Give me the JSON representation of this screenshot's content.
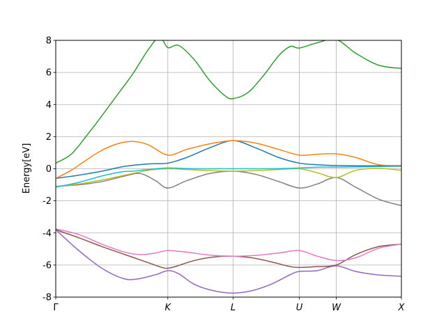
{
  "chart_data": {
    "type": "line",
    "title": "",
    "xlabel": "",
    "ylabel": "Energy[eV]",
    "ylim": [
      -8,
      8
    ],
    "yticks": [
      -8,
      -6,
      -4,
      -2,
      0,
      2,
      4,
      6,
      8
    ],
    "xlim": [
      0,
      4.494
    ],
    "xticks": [
      {
        "label": "Γ",
        "x": 0.0
      },
      {
        "label": "K",
        "x": 1.457
      },
      {
        "label": "L",
        "x": 2.306
      },
      {
        "label": "U",
        "x": 3.167
      },
      {
        "label": "W",
        "x": 3.647
      },
      {
        "label": "X",
        "x": 4.494
      }
    ],
    "grid": true,
    "series": [
      {
        "color": "#9467bd",
        "points": [
          [
            0,
            -3.8
          ],
          [
            0.3,
            -5.1
          ],
          [
            0.6,
            -6.2
          ],
          [
            0.87,
            -6.83
          ],
          [
            1.05,
            -6.88
          ],
          [
            1.3,
            -6.6
          ],
          [
            1.457,
            -6.35
          ],
          [
            1.6,
            -6.55
          ],
          [
            1.8,
            -7.2
          ],
          [
            2.05,
            -7.6
          ],
          [
            2.306,
            -7.75
          ],
          [
            2.55,
            -7.6
          ],
          [
            2.8,
            -7.2
          ],
          [
            3.05,
            -6.6
          ],
          [
            3.167,
            -6.4
          ],
          [
            3.4,
            -6.35
          ],
          [
            3.647,
            -6.05
          ],
          [
            3.9,
            -6.4
          ],
          [
            4.2,
            -6.62
          ],
          [
            4.494,
            -6.7
          ]
        ]
      },
      {
        "color": "#8c564b",
        "points": [
          [
            0,
            -3.8
          ],
          [
            0.3,
            -4.3
          ],
          [
            0.6,
            -4.85
          ],
          [
            0.9,
            -5.35
          ],
          [
            1.2,
            -5.85
          ],
          [
            1.38,
            -6.15
          ],
          [
            1.457,
            -6.2
          ],
          [
            1.55,
            -6.1
          ],
          [
            1.8,
            -5.72
          ],
          [
            2.05,
            -5.5
          ],
          [
            2.306,
            -5.45
          ],
          [
            2.55,
            -5.55
          ],
          [
            2.8,
            -5.8
          ],
          [
            3.05,
            -6.1
          ],
          [
            3.167,
            -6.15
          ],
          [
            3.4,
            -6.1
          ],
          [
            3.647,
            -6.0
          ],
          [
            3.9,
            -5.35
          ],
          [
            4.2,
            -4.85
          ],
          [
            4.494,
            -4.7
          ]
        ]
      },
      {
        "color": "#e377c2",
        "points": [
          [
            0,
            -3.75
          ],
          [
            0.3,
            -4.1
          ],
          [
            0.6,
            -4.7
          ],
          [
            0.9,
            -5.2
          ],
          [
            1.1,
            -5.35
          ],
          [
            1.3,
            -5.25
          ],
          [
            1.457,
            -5.1
          ],
          [
            1.7,
            -5.2
          ],
          [
            2.0,
            -5.38
          ],
          [
            2.306,
            -5.45
          ],
          [
            2.6,
            -5.4
          ],
          [
            2.9,
            -5.25
          ],
          [
            3.167,
            -5.1
          ],
          [
            3.4,
            -5.45
          ],
          [
            3.647,
            -5.72
          ],
          [
            3.9,
            -5.55
          ],
          [
            4.2,
            -4.95
          ],
          [
            4.494,
            -4.7
          ]
        ]
      },
      {
        "color": "#7f7f7f",
        "points": [
          [
            0,
            -1.1
          ],
          [
            0.3,
            -1.0
          ],
          [
            0.6,
            -0.8
          ],
          [
            0.9,
            -0.45
          ],
          [
            1.1,
            -0.3
          ],
          [
            1.3,
            -0.75
          ],
          [
            1.457,
            -1.2
          ],
          [
            1.7,
            -0.75
          ],
          [
            2.0,
            -0.3
          ],
          [
            2.306,
            -0.15
          ],
          [
            2.6,
            -0.35
          ],
          [
            2.9,
            -0.8
          ],
          [
            3.167,
            -1.2
          ],
          [
            3.4,
            -0.95
          ],
          [
            3.647,
            -0.55
          ],
          [
            3.9,
            -1.15
          ],
          [
            4.2,
            -1.9
          ],
          [
            4.494,
            -2.3
          ]
        ]
      },
      {
        "color": "#bcbd22",
        "points": [
          [
            0,
            -1.1
          ],
          [
            0.3,
            -0.95
          ],
          [
            0.6,
            -0.7
          ],
          [
            0.9,
            -0.4
          ],
          [
            1.2,
            -0.1
          ],
          [
            1.457,
            0.0
          ],
          [
            1.7,
            -0.05
          ],
          [
            2.0,
            -0.12
          ],
          [
            2.306,
            -0.15
          ],
          [
            2.6,
            -0.12
          ],
          [
            2.9,
            -0.05
          ],
          [
            3.167,
            0.0
          ],
          [
            3.4,
            -0.25
          ],
          [
            3.647,
            -0.55
          ],
          [
            3.9,
            -0.1
          ],
          [
            4.2,
            0.02
          ],
          [
            4.494,
            -0.1
          ]
        ]
      },
      {
        "color": "#17becf",
        "points": [
          [
            0,
            -1.15
          ],
          [
            0.3,
            -0.85
          ],
          [
            0.6,
            -0.45
          ],
          [
            0.85,
            -0.2
          ],
          [
            1.0,
            -0.15
          ],
          [
            1.2,
            -0.05
          ],
          [
            1.457,
            0.05
          ],
          [
            1.8,
            0.0
          ],
          [
            2.306,
            0.0
          ],
          [
            2.8,
            0.0
          ],
          [
            3.167,
            0.05
          ],
          [
            3.4,
            0.1
          ],
          [
            3.647,
            0.1
          ],
          [
            4.0,
            0.12
          ],
          [
            4.494,
            0.15
          ]
        ]
      },
      {
        "color": "#1f77b4",
        "points": [
          [
            0,
            -0.6
          ],
          [
            0.3,
            -0.4
          ],
          [
            0.6,
            -0.15
          ],
          [
            0.9,
            0.15
          ],
          [
            1.2,
            0.3
          ],
          [
            1.457,
            0.35
          ],
          [
            1.7,
            0.7
          ],
          [
            2.0,
            1.3
          ],
          [
            2.306,
            1.75
          ],
          [
            2.6,
            1.3
          ],
          [
            2.9,
            0.7
          ],
          [
            3.167,
            0.35
          ],
          [
            3.4,
            0.25
          ],
          [
            3.647,
            0.2
          ],
          [
            4.0,
            0.18
          ],
          [
            4.494,
            0.2
          ]
        ]
      },
      {
        "color": "#ff7f0e",
        "points": [
          [
            0,
            -0.6
          ],
          [
            0.2,
            -0.1
          ],
          [
            0.4,
            0.55
          ],
          [
            0.6,
            1.15
          ],
          [
            0.8,
            1.55
          ],
          [
            1.0,
            1.7
          ],
          [
            1.2,
            1.5
          ],
          [
            1.457,
            0.85
          ],
          [
            1.7,
            1.2
          ],
          [
            2.0,
            1.55
          ],
          [
            2.306,
            1.75
          ],
          [
            2.6,
            1.6
          ],
          [
            2.9,
            1.2
          ],
          [
            3.167,
            0.85
          ],
          [
            3.4,
            0.9
          ],
          [
            3.647,
            0.93
          ],
          [
            3.9,
            0.7
          ],
          [
            4.2,
            0.25
          ],
          [
            4.494,
            0.2
          ]
        ]
      },
      {
        "color": "#2ca02c",
        "points": [
          [
            0,
            0.35
          ],
          [
            0.2,
            0.9
          ],
          [
            0.4,
            2.05
          ],
          [
            0.6,
            3.3
          ],
          [
            0.8,
            4.6
          ],
          [
            1.0,
            5.9
          ],
          [
            1.2,
            7.4
          ],
          [
            1.35,
            8.2
          ],
          [
            1.457,
            7.55
          ],
          [
            1.6,
            7.68
          ],
          [
            1.8,
            6.8
          ],
          [
            2.0,
            5.5
          ],
          [
            2.2,
            4.55
          ],
          [
            2.306,
            4.37
          ],
          [
            2.5,
            4.75
          ],
          [
            2.7,
            5.8
          ],
          [
            2.9,
            7.05
          ],
          [
            3.05,
            7.62
          ],
          [
            3.167,
            7.52
          ],
          [
            3.4,
            7.85
          ],
          [
            3.647,
            8.05
          ],
          [
            3.9,
            7.2
          ],
          [
            4.2,
            6.45
          ],
          [
            4.494,
            6.25
          ]
        ]
      }
    ]
  }
}
